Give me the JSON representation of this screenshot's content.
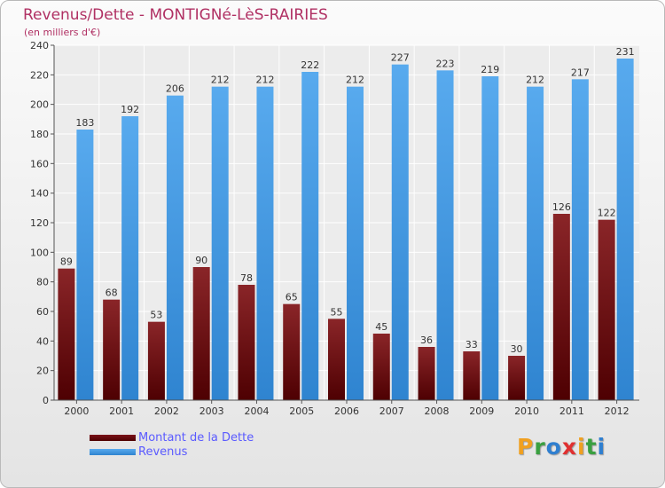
{
  "chart_data": {
    "type": "bar",
    "title": "Revenus/Dette - MONTIGNé-LèS-RAIRIES",
    "subtitle": "(en milliers d'€)",
    "categories": [
      "2000",
      "2001",
      "2002",
      "2003",
      "2004",
      "2005",
      "2006",
      "2007",
      "2008",
      "2009",
      "2010",
      "2011",
      "2012"
    ],
    "series": [
      {
        "name": "Montant de la Dette",
        "color": "#7a1218",
        "values": [
          89,
          68,
          53,
          90,
          78,
          65,
          55,
          45,
          36,
          33,
          30,
          126,
          122
        ]
      },
      {
        "name": "Revenus",
        "color": "#4a9fe5",
        "values": [
          183,
          192,
          206,
          212,
          212,
          222,
          212,
          227,
          223,
          219,
          212,
          217,
          231
        ]
      }
    ],
    "ylim": [
      0,
      240
    ],
    "yticks": [
      0,
      20,
      40,
      60,
      80,
      100,
      120,
      140,
      160,
      180,
      200,
      220,
      240
    ],
    "grid": true,
    "legend_position": "bottom-left"
  },
  "logo": {
    "letters": [
      "P",
      "r",
      "o",
      "x",
      "i",
      "t",
      "i"
    ],
    "colors": [
      "#f0a020",
      "#3aa040",
      "#2f7fd0",
      "#e03030",
      "#f0a020",
      "#3aa040",
      "#2f7fd0"
    ]
  }
}
